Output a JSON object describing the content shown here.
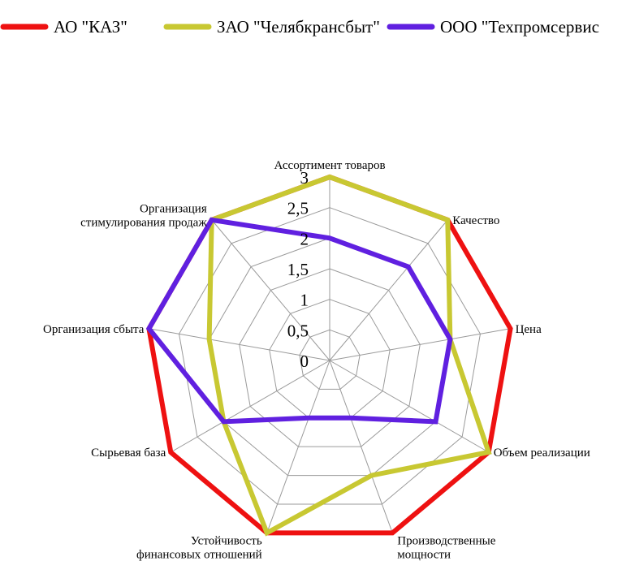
{
  "chart_data": {
    "type": "radar",
    "title": "",
    "categories": [
      [
        "Ассортимент товаров"
      ],
      [
        "Качество"
      ],
      [
        "Цена"
      ],
      [
        "Объем реализации"
      ],
      [
        "Производственные",
        "мощности"
      ],
      [
        "Устойчивость",
        "финансовых отношений"
      ],
      [
        "Сырьевая база"
      ],
      [
        "Организация сбыта"
      ],
      [
        "Организация",
        "стимулирования продаж"
      ]
    ],
    "r_ticks": [
      "0",
      "0,5",
      "1",
      "1,5",
      "2",
      "2,5",
      "3"
    ],
    "rlim": [
      0,
      3
    ],
    "grid": true,
    "legend_position": "top",
    "series": [
      {
        "name": "АО \"КАЗ\"",
        "color": "#ee1111",
        "values": [
          3,
          3,
          3,
          3,
          3,
          3,
          3,
          3,
          3
        ]
      },
      {
        "name": "ЗАО \"Челябкрансбыт\"",
        "color": "#c8c832",
        "values": [
          3,
          3,
          2,
          3,
          2,
          3,
          2,
          2,
          3
        ]
      },
      {
        "name": "ООО \"Техпромсервис",
        "color": "#6020e0",
        "values": [
          2,
          2,
          2,
          2,
          1,
          1,
          2,
          3,
          3
        ]
      }
    ]
  }
}
